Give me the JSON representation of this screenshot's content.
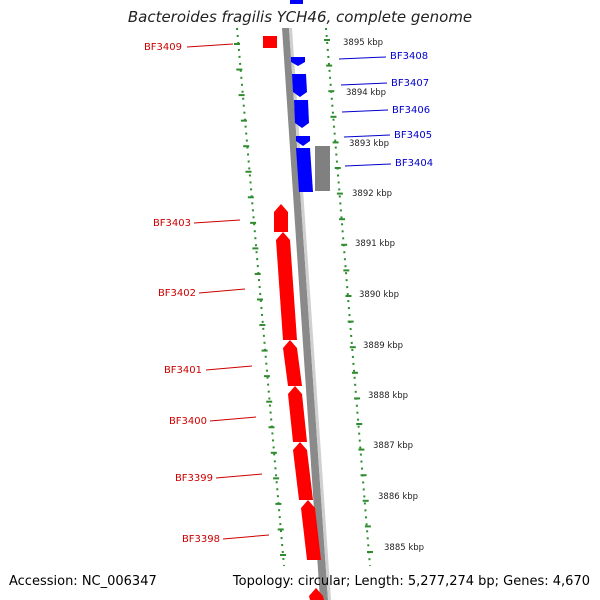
{
  "header": {
    "title": "Bacteroides fragilis YCH46, complete genome"
  },
  "footer": {
    "accession": "Accession: NC_006347",
    "topology": "Topology: circular; Length: 5,277,274 bp; Genes: 4,670"
  },
  "colors": {
    "forward_strand": "#ff0000",
    "reverse_strand": "#0000ff",
    "forward_label": "#cc0000",
    "reverse_label": "#0000cc",
    "other_feature": "#808080",
    "backbone": "#808080",
    "dotted_track": "#2e8b2e"
  },
  "scale": {
    "unit": "kbp",
    "ticks": [
      3895,
      3894,
      3893,
      3892,
      3891,
      3890,
      3889,
      3888,
      3887,
      3886,
      3885
    ]
  },
  "genes_left": [
    "BF3409",
    "BF3403",
    "BF3402",
    "BF3401",
    "BF3400",
    "BF3399",
    "BF3398"
  ],
  "genes_right": [
    "BF3408",
    "BF3407",
    "BF3406",
    "BF3405",
    "BF3404"
  ]
}
